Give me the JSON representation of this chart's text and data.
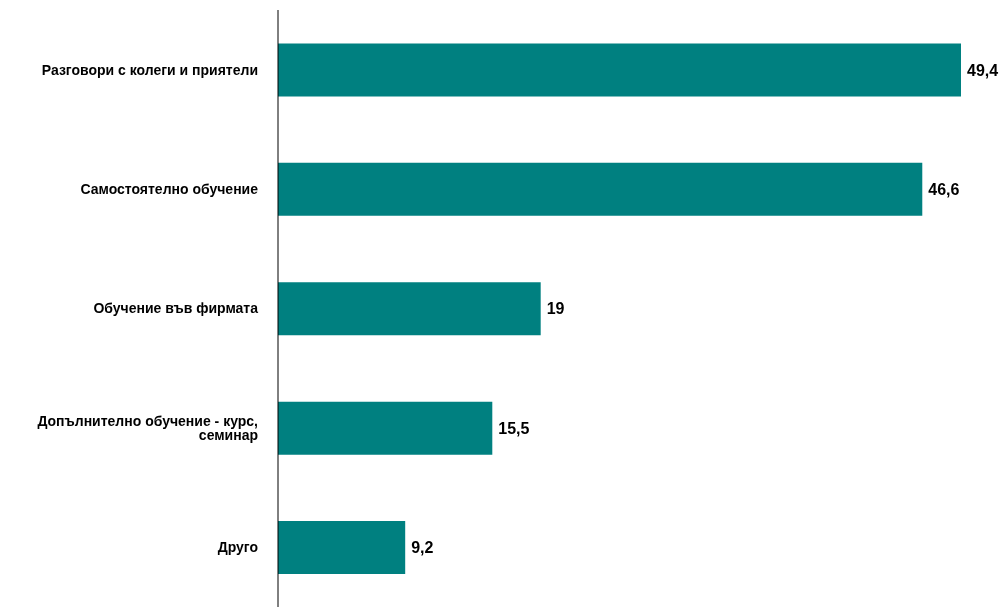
{
  "chart_data": {
    "type": "bar",
    "orientation": "horizontal",
    "categories": [
      "Разговори с колеги и приятели",
      "Самостоятелно обучение",
      "Обучение във фирмата",
      "Допълнително обучение - курс, семинар",
      "Друго"
    ],
    "values": [
      49.4,
      46.6,
      19,
      15.5,
      9.2
    ],
    "value_labels": [
      "49,4",
      "46,6",
      "19",
      "15,5",
      "9,2"
    ],
    "color": "#008080",
    "tick_labels": "y",
    "grid": false
  }
}
